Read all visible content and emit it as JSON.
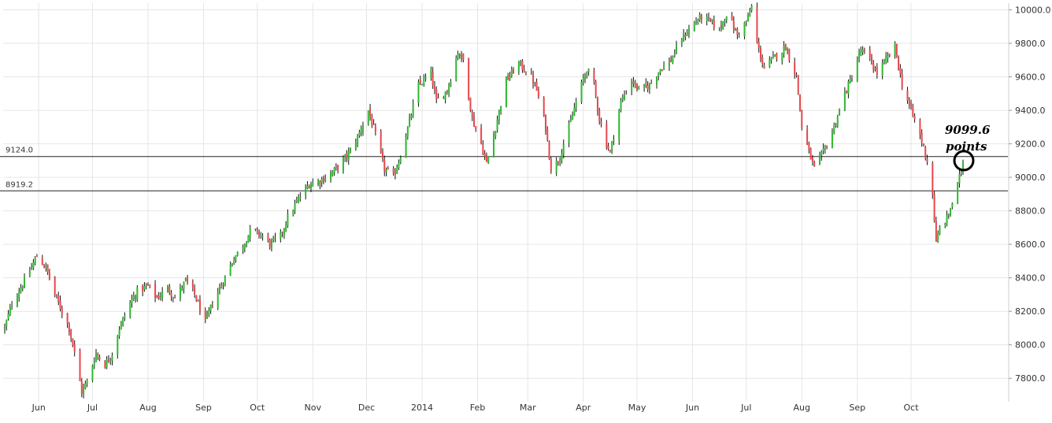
{
  "chart_data": {
    "type": "candlestick",
    "x_tick_labels": [
      "Jun",
      "Jul",
      "Aug",
      "Sep",
      "Oct",
      "Nov",
      "Dec",
      "2014",
      "Feb",
      "Mar",
      "Apr",
      "May",
      "Jun",
      "Jul",
      "Aug",
      "Sep",
      "Oct"
    ],
    "y_tick_labels": [
      "7800.0",
      "8000.0",
      "8200.0",
      "8400.0",
      "8600.0",
      "8800.0",
      "9000.0",
      "9200.0",
      "9400.0",
      "9600.0",
      "9800.0",
      "10000.0"
    ],
    "ylim": [
      7660,
      10040
    ],
    "grid": true,
    "reference_lines": [
      {
        "label": "9124.0",
        "value": 9124.0
      },
      {
        "label": "8919.2",
        "value": 8919.2
      }
    ],
    "annotation": {
      "line1": "9099.6",
      "line2": "points",
      "value": 9099.6
    },
    "colors": {
      "up": "#2eb82e",
      "down": "#e8474a",
      "wick": "#111111",
      "grid": "#e6e6e6",
      "reference": "#222222",
      "circle": "#000000"
    },
    "close_path": [
      [
        "2013-05-13",
        8100
      ],
      [
        "2013-05-17",
        8250
      ],
      [
        "2013-05-24",
        8380
      ],
      [
        "2013-05-31",
        8530
      ],
      [
        "2013-06-05",
        8460
      ],
      [
        "2013-06-10",
        8300
      ],
      [
        "2013-06-14",
        8200
      ],
      [
        "2013-06-18",
        8100
      ],
      [
        "2013-06-21",
        7950
      ],
      [
        "2013-06-25",
        7720
      ],
      [
        "2013-06-28",
        7780
      ],
      [
        "2013-07-03",
        7950
      ],
      [
        "2013-07-08",
        7880
      ],
      [
        "2013-07-12",
        7950
      ],
      [
        "2013-07-16",
        8100
      ],
      [
        "2013-07-22",
        8250
      ],
      [
        "2013-07-26",
        8320
      ],
      [
        "2013-08-01",
        8350
      ],
      [
        "2013-08-06",
        8280
      ],
      [
        "2013-08-12",
        8340
      ],
      [
        "2013-08-16",
        8280
      ],
      [
        "2013-08-22",
        8380
      ],
      [
        "2013-08-27",
        8300
      ],
      [
        "2013-09-02",
        8130
      ],
      [
        "2013-09-06",
        8250
      ],
      [
        "2013-09-12",
        8380
      ],
      [
        "2013-09-18",
        8520
      ],
      [
        "2013-09-23",
        8590
      ],
      [
        "2013-09-27",
        8680
      ],
      [
        "2013-10-03",
        8660
      ],
      [
        "2013-10-08",
        8600
      ],
      [
        "2013-10-14",
        8650
      ],
      [
        "2013-10-18",
        8760
      ],
      [
        "2013-10-24",
        8870
      ],
      [
        "2013-10-30",
        8960
      ],
      [
        "2013-11-05",
        8980
      ],
      [
        "2013-11-11",
        9020
      ],
      [
        "2013-11-15",
        9060
      ],
      [
        "2013-11-21",
        9140
      ],
      [
        "2013-11-26",
        9240
      ],
      [
        "2013-12-02",
        9400
      ],
      [
        "2013-12-06",
        9250
      ],
      [
        "2013-12-11",
        9050
      ],
      [
        "2013-12-16",
        9000
      ],
      [
        "2013-12-19",
        9100
      ],
      [
        "2013-12-23",
        9250
      ],
      [
        "2013-12-30",
        9550
      ],
      [
        "2014-01-06",
        9620
      ],
      [
        "2014-01-09",
        9450
      ],
      [
        "2014-01-15",
        9520
      ],
      [
        "2014-01-21",
        9750
      ],
      [
        "2014-01-24",
        9700
      ],
      [
        "2014-01-29",
        9350
      ],
      [
        "2014-02-03",
        9200
      ],
      [
        "2014-02-06",
        9080
      ],
      [
        "2014-02-11",
        9300
      ],
      [
        "2014-02-17",
        9580
      ],
      [
        "2014-02-24",
        9680
      ],
      [
        "2014-03-03",
        9600
      ],
      [
        "2014-03-06",
        9520
      ],
      [
        "2014-03-11",
        9300
      ],
      [
        "2014-03-14",
        9050
      ],
      [
        "2014-03-18",
        9100
      ],
      [
        "2014-03-24",
        9300
      ],
      [
        "2014-03-28",
        9450
      ],
      [
        "2014-04-03",
        9650
      ],
      [
        "2014-04-07",
        9550
      ],
      [
        "2014-04-10",
        9350
      ],
      [
        "2014-04-14",
        9200
      ],
      [
        "2014-04-16",
        9150
      ],
      [
        "2014-04-22",
        9450
      ],
      [
        "2014-04-28",
        9580
      ],
      [
        "2014-05-02",
        9520
      ],
      [
        "2014-05-08",
        9550
      ],
      [
        "2014-05-14",
        9650
      ],
      [
        "2014-05-20",
        9700
      ],
      [
        "2014-05-26",
        9830
      ],
      [
        "2014-06-02",
        9920
      ],
      [
        "2014-06-06",
        9960
      ],
      [
        "2014-06-12",
        9920
      ],
      [
        "2014-06-16",
        9880
      ],
      [
        "2014-06-20",
        9980
      ],
      [
        "2014-06-26",
        9850
      ],
      [
        "2014-07-02",
        9950
      ],
      [
        "2014-07-04",
        10020
      ],
      [
        "2014-07-07",
        9800
      ],
      [
        "2014-07-11",
        9650
      ],
      [
        "2014-07-17",
        9720
      ],
      [
        "2014-07-23",
        9780
      ],
      [
        "2014-07-29",
        9600
      ],
      [
        "2014-08-01",
        9300
      ],
      [
        "2014-08-05",
        9150
      ],
      [
        "2014-08-08",
        9050
      ],
      [
        "2014-08-13",
        9150
      ],
      [
        "2014-08-19",
        9300
      ],
      [
        "2014-08-25",
        9500
      ],
      [
        "2014-08-29",
        9600
      ],
      [
        "2014-09-03",
        9760
      ],
      [
        "2014-09-08",
        9700
      ],
      [
        "2014-09-12",
        9620
      ],
      [
        "2014-09-17",
        9700
      ],
      [
        "2014-09-22",
        9780
      ],
      [
        "2014-09-26",
        9550
      ],
      [
        "2014-10-01",
        9400
      ],
      [
        "2014-10-06",
        9250
      ],
      [
        "2014-10-10",
        9100
      ],
      [
        "2014-10-13",
        8900
      ],
      [
        "2014-10-15",
        8600
      ],
      [
        "2014-10-17",
        8700
      ],
      [
        "2014-10-21",
        8750
      ],
      [
        "2014-10-24",
        8850
      ],
      [
        "2014-10-27",
        8950
      ],
      [
        "2014-10-30",
        9099.6
      ]
    ]
  }
}
